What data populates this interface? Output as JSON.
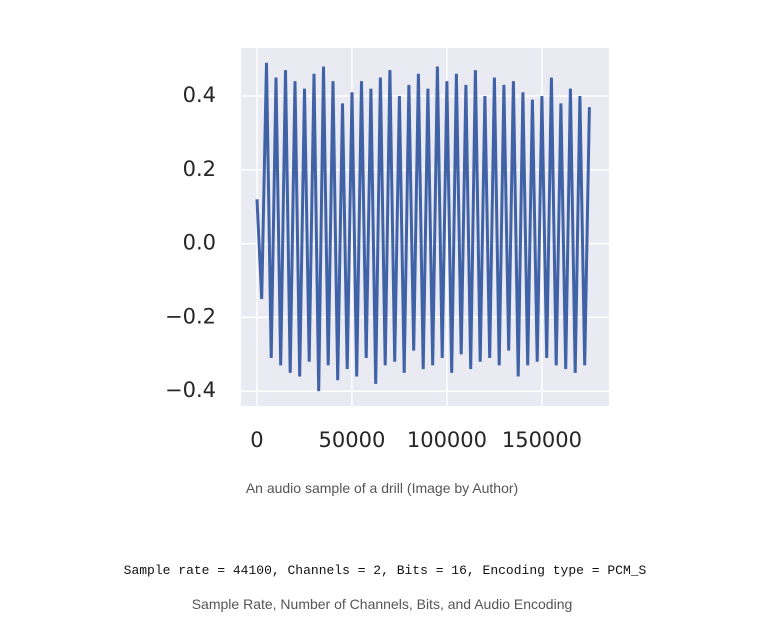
{
  "chart_data": {
    "type": "line",
    "x": [
      0,
      2500,
      5000,
      7500,
      10000,
      12500,
      15000,
      17500,
      20000,
      22500,
      25000,
      27500,
      30000,
      32500,
      35000,
      37500,
      40000,
      42500,
      45000,
      47500,
      50000,
      52500,
      55000,
      57500,
      60000,
      62500,
      65000,
      67500,
      70000,
      72500,
      75000,
      77500,
      80000,
      82500,
      85000,
      87500,
      90000,
      92500,
      95000,
      97500,
      100000,
      102500,
      105000,
      107500,
      110000,
      112500,
      115000,
      117500,
      120000,
      122500,
      125000,
      127500,
      130000,
      132500,
      135000,
      137500,
      140000,
      142500,
      145000,
      147500,
      150000,
      152500,
      155000,
      157500,
      160000,
      162500,
      165000,
      167500,
      170000,
      172500,
      175000
    ],
    "series": [
      {
        "color": "#4062a6",
        "values": [
          0.12,
          -0.15,
          0.49,
          -0.31,
          0.45,
          -0.33,
          0.47,
          -0.35,
          0.44,
          -0.36,
          0.42,
          -0.32,
          0.46,
          -0.4,
          0.48,
          -0.33,
          0.44,
          -0.37,
          0.38,
          -0.34,
          0.41,
          -0.36,
          0.44,
          -0.31,
          0.42,
          -0.38,
          0.45,
          -0.33,
          0.47,
          -0.32,
          0.4,
          -0.35,
          0.43,
          -0.29,
          0.46,
          -0.34,
          0.42,
          -0.33,
          0.48,
          -0.31,
          0.44,
          -0.35,
          0.46,
          -0.3,
          0.43,
          -0.34,
          0.47,
          -0.32,
          0.4,
          -0.31,
          0.45,
          -0.33,
          0.43,
          -0.29,
          0.44,
          -0.36,
          0.41,
          -0.33,
          0.39,
          -0.32,
          0.4,
          -0.31,
          0.45,
          -0.33,
          0.38,
          -0.34,
          0.42,
          -0.35,
          0.4,
          -0.33,
          0.37
        ]
      }
    ],
    "xlim": [
      -8400,
      185300
    ],
    "ylim": [
      -0.44,
      0.53
    ],
    "xticks": [
      0,
      50000,
      100000,
      150000
    ],
    "yticks": [
      {
        "value": -0.4,
        "label": "−0.4"
      },
      {
        "value": -0.2,
        "label": "−0.2"
      },
      {
        "value": 0,
        "label": "0.0"
      },
      0.2,
      0.4
    ],
    "grid": true
  },
  "caption": "An audio sample of a drill (Image by Author)",
  "code_line": "Sample rate = 44100, Channels = 2, Bits = 16, Encoding type = PCM_S",
  "code_caption": "Sample Rate, Number of Channels, Bits, and Audio Encoding"
}
